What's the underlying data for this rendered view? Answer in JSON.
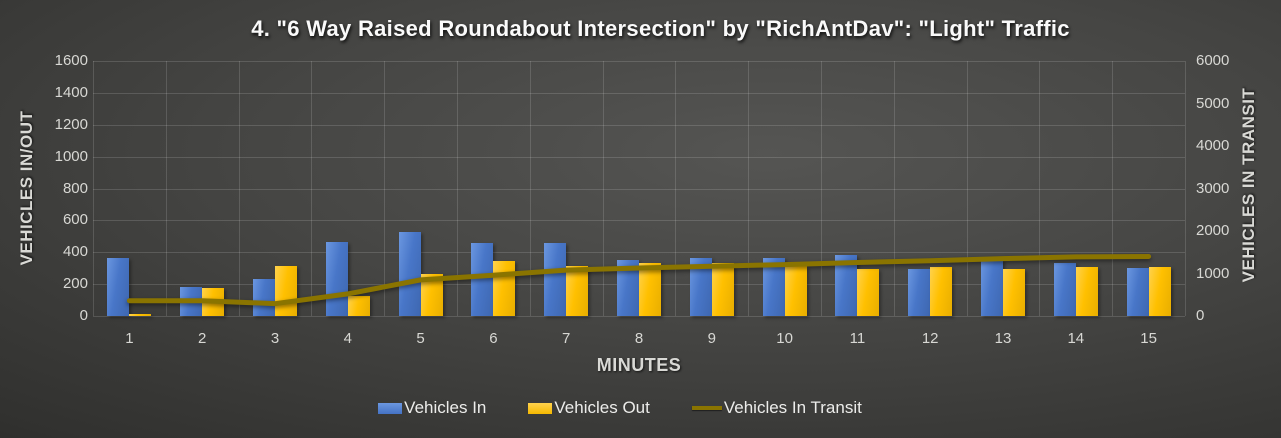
{
  "title": "4. \"6 Way Raised Roundabout Intersection\" by \"RichAntDav\": \"Light\" Traffic",
  "colors": {
    "vehicles_in": "#4472c4",
    "vehicles_out": "#ffc000",
    "vehicles_in_transit": "#8a7400",
    "background": "#3a3a38",
    "grid": "#5f5f5d",
    "text": "#e6e6e2"
  },
  "chart_data": {
    "type": "bar",
    "title": "4. \"6 Way Raised Roundabout Intersection\" by \"RichAntDav\": \"Light\" Traffic",
    "xlabel": "MINUTES",
    "ylabel_left": "VEHICLES IN/OUT",
    "ylabel_right": "VEHICLES IN TRANSIT",
    "categories": [
      1,
      2,
      3,
      4,
      5,
      6,
      7,
      8,
      9,
      10,
      11,
      12,
      13,
      14,
      15
    ],
    "left_axis": {
      "min": 0,
      "max": 1600,
      "ticks": [
        0,
        200,
        400,
        600,
        800,
        1000,
        1200,
        1400,
        1600
      ]
    },
    "right_axis": {
      "min": 0,
      "max": 6000,
      "ticks": [
        0,
        1000,
        2000,
        3000,
        4000,
        5000,
        6000
      ]
    },
    "grid": true,
    "legend_position": "bottom",
    "series": [
      {
        "name": "Vehicles In",
        "type": "bar",
        "axis": "left",
        "values": [
          365,
          185,
          235,
          465,
          530,
          460,
          460,
          350,
          365,
          365,
          380,
          295,
          360,
          330,
          300
        ]
      },
      {
        "name": "Vehicles Out",
        "type": "bar",
        "axis": "left",
        "values": [
          15,
          175,
          315,
          125,
          265,
          345,
          315,
          335,
          330,
          315,
          295,
          310,
          295,
          305,
          305
        ]
      },
      {
        "name": "Vehicles In Transit",
        "type": "line",
        "axis": "right",
        "values": [
          360,
          360,
          290,
          520,
          850,
          960,
          1080,
          1130,
          1170,
          1210,
          1260,
          1300,
          1350,
          1390,
          1400
        ]
      }
    ]
  }
}
